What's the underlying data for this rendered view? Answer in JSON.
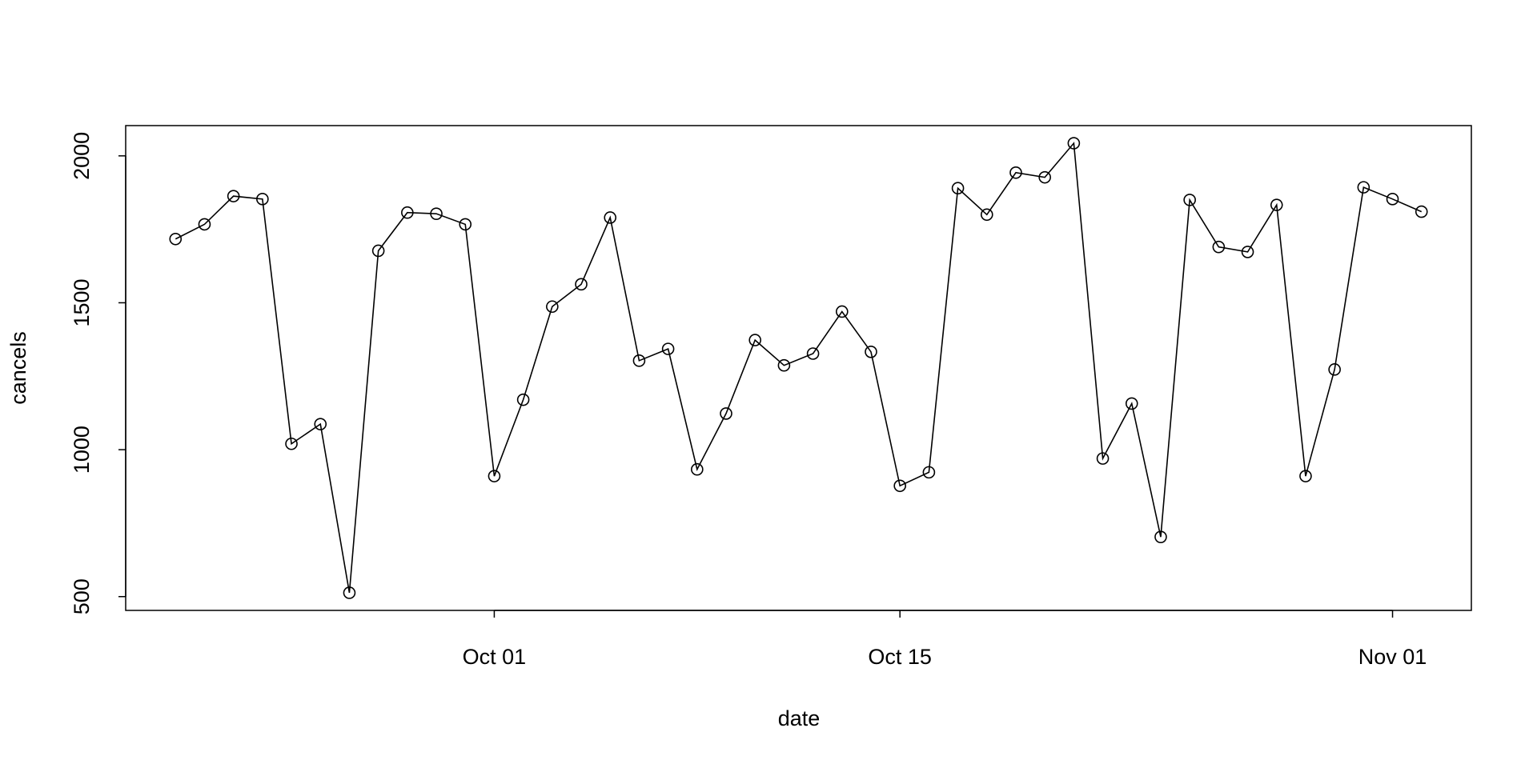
{
  "chart_data": {
    "type": "line",
    "x_label": "date",
    "y_label": "cancels",
    "x": [
      "09-20",
      "09-21",
      "09-22",
      "09-23",
      "09-24",
      "09-25",
      "09-26",
      "09-27",
      "09-28",
      "09-29",
      "09-30",
      "10-01",
      "10-02",
      "10-03",
      "10-04",
      "10-05",
      "10-06",
      "10-07",
      "10-08",
      "10-09",
      "10-10",
      "10-11",
      "10-12",
      "10-13",
      "10-14",
      "10-15",
      "10-16",
      "10-17",
      "10-18",
      "10-19",
      "10-20",
      "10-21",
      "10-22",
      "10-23",
      "10-24",
      "10-25",
      "10-26",
      "10-27",
      "10-28",
      "10-29",
      "10-30",
      "10-31",
      "11-01",
      "11-02"
    ],
    "series": [
      {
        "name": "cancels",
        "color": "#000000",
        "values": [
          1717,
          1767,
          1863,
          1853,
          1020,
          1087,
          513,
          1677,
          1807,
          1803,
          1767,
          910,
          1170,
          1487,
          1563,
          1790,
          1303,
          1343,
          933,
          1123,
          1373,
          1287,
          1327,
          1470,
          1333,
          877,
          923,
          1890,
          1800,
          1943,
          1927,
          2043,
          970,
          1157,
          703,
          1850,
          1690,
          1673,
          1833,
          910,
          1273,
          1893,
          1853,
          1810
        ]
      }
    ],
    "xticks": [
      {
        "value": "10-01",
        "label": "Oct 01"
      },
      {
        "value": "10-15",
        "label": "Oct 15"
      },
      {
        "value": "11-01",
        "label": "Nov 01"
      }
    ],
    "ylim": [
      453,
      2103
    ],
    "yticks": [
      500,
      1000,
      1500,
      2000
    ],
    "grid": false
  }
}
